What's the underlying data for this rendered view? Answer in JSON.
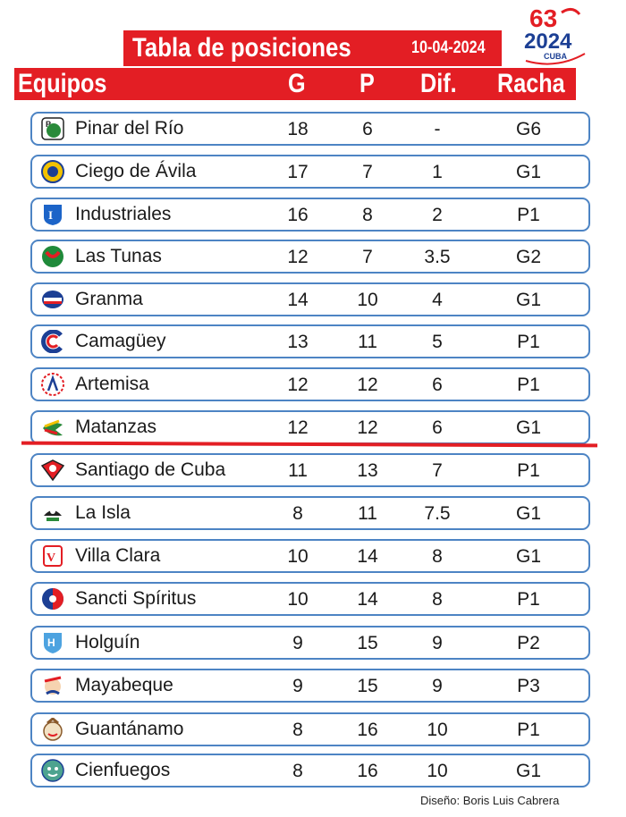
{
  "header": {
    "title": "Tabla de posiciones",
    "date": "10-04-2024",
    "logo": {
      "number": "63",
      "year": "2024",
      "country": "CUBA"
    },
    "columns": {
      "team": "Equipos",
      "g": "G",
      "p": "P",
      "dif": "Dif.",
      "racha": "Racha"
    }
  },
  "rows": [
    {
      "team": "Pinar del Río",
      "g": "18",
      "p": "6",
      "dif": "-",
      "racha": "G6",
      "icon": "pinar-del-rio-logo-icon"
    },
    {
      "team": "Ciego de Ávila",
      "g": "17",
      "p": "7",
      "dif": "1",
      "racha": "G1",
      "icon": "ciego-de-avila-logo-icon"
    },
    {
      "team": "Industriales",
      "g": "16",
      "p": "8",
      "dif": "2",
      "racha": "P1",
      "icon": "industriales-logo-icon"
    },
    {
      "team": "Las Tunas",
      "g": "12",
      "p": "7",
      "dif": "3.5",
      "racha": "G2",
      "icon": "las-tunas-logo-icon"
    },
    {
      "team": "Granma",
      "g": "14",
      "p": "10",
      "dif": "4",
      "racha": "G1",
      "icon": "granma-logo-icon"
    },
    {
      "team": "Camagüey",
      "g": "13",
      "p": "11",
      "dif": "5",
      "racha": "P1",
      "icon": "camaguey-logo-icon"
    },
    {
      "team": "Artemisa",
      "g": "12",
      "p": "12",
      "dif": "6",
      "racha": "P1",
      "icon": "artemisa-logo-icon"
    },
    {
      "team": "Matanzas",
      "g": "12",
      "p": "12",
      "dif": "6",
      "racha": "G1",
      "icon": "matanzas-logo-icon"
    },
    {
      "team": "Santiago de Cuba",
      "g": "11",
      "p": "13",
      "dif": "7",
      "racha": "P1",
      "icon": "santiago-de-cuba-logo-icon"
    },
    {
      "team": "La Isla",
      "g": "8",
      "p": "11",
      "dif": "7.5",
      "racha": "G1",
      "icon": "la-isla-logo-icon"
    },
    {
      "team": "Villa Clara",
      "g": "10",
      "p": "14",
      "dif": "8",
      "racha": "G1",
      "icon": "villa-clara-logo-icon"
    },
    {
      "team": "Sancti Spíritus",
      "g": "10",
      "p": "14",
      "dif": "8",
      "racha": "P1",
      "icon": "sancti-spiritus-logo-icon"
    },
    {
      "team": "Holguín",
      "g": "9",
      "p": "15",
      "dif": "9",
      "racha": "P2",
      "icon": "holguin-logo-icon"
    },
    {
      "team": "Mayabeque",
      "g": "9",
      "p": "15",
      "dif": "9",
      "racha": "P3",
      "icon": "mayabeque-logo-icon"
    },
    {
      "team": "Guantánamo",
      "g": "8",
      "p": "16",
      "dif": "10",
      "racha": "P1",
      "icon": "guantanamo-logo-icon"
    },
    {
      "team": "Cienfuegos",
      "g": "8",
      "p": "16",
      "dif": "10",
      "racha": "G1",
      "icon": "cienfuegos-logo-icon"
    }
  ],
  "footer": {
    "credit": "Diseño: Boris Luis Cabrera"
  },
  "colors": {
    "accent": "#e31e24",
    "row_border": "#4d84c4",
    "text": "#1a1a1a"
  }
}
